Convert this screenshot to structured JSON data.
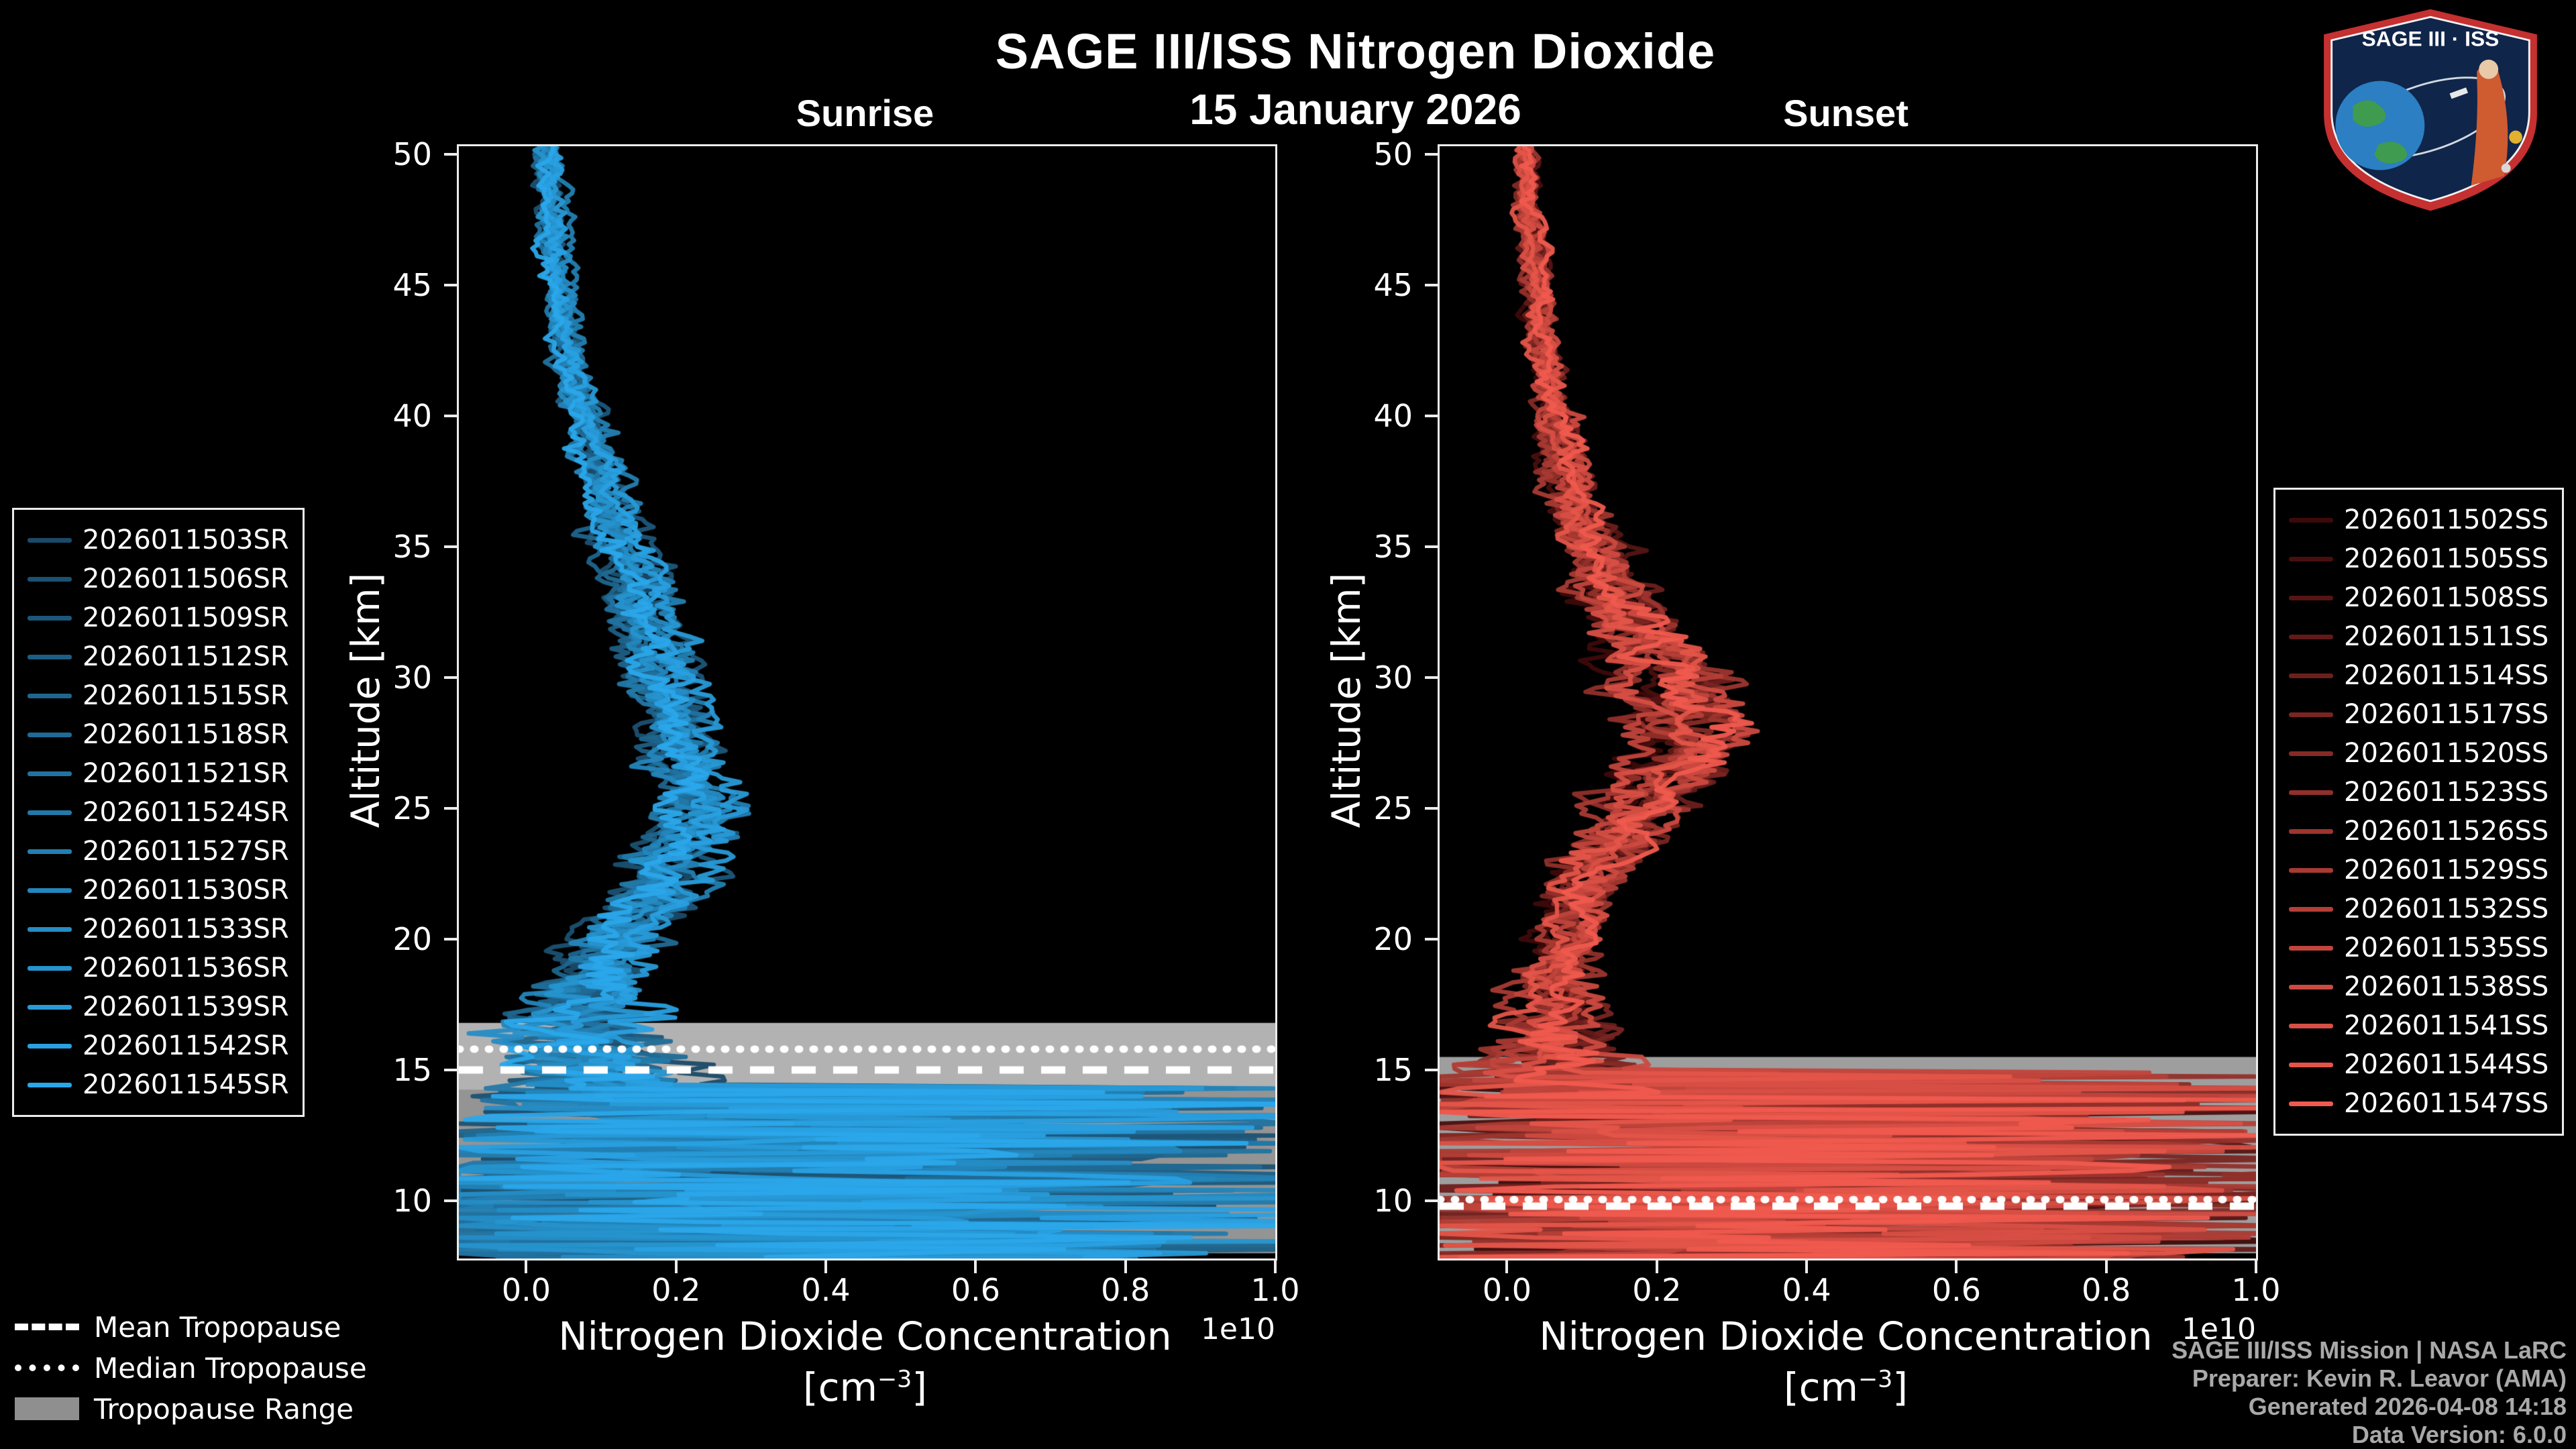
{
  "header": {
    "title": "SAGE III/ISS Nitrogen Dioxide",
    "date": "15 January 2026"
  },
  "logo": {
    "title": "SAGE III · ISS"
  },
  "tropopause_legend": {
    "mean_label": "Mean Tropopause",
    "median_label": "Median Tropopause",
    "range_label": "Tropopause Range"
  },
  "credits": {
    "line1": "SAGE III/ISS Mission | NASA LaRC",
    "line2": "Preparer: Kevin R. Leavor (AMA)",
    "line3": "Generated 2026-04-08 14:18",
    "line4": "Data Version: 6.0.0"
  },
  "chart_data": [
    {
      "type": "line",
      "panel": "sunrise",
      "title": "Sunrise",
      "xlabel": "Nitrogen Dioxide Concentration",
      "xlabel_units_prefix": "[cm",
      "xlabel_units_exponent": "−3",
      "xlabel_units_suffix": "]",
      "x_offset_text": "1e10",
      "ylabel": "Altitude [km]",
      "xlim": [
        -0.09,
        1.0
      ],
      "ylim": [
        7.8,
        50.3
      ],
      "xticks": [
        0.0,
        0.2,
        0.4,
        0.6,
        0.8,
        1.0
      ],
      "xtick_labels": [
        "0.0",
        "0.2",
        "0.4",
        "0.6",
        "0.8",
        "1.0"
      ],
      "yticks": [
        10,
        15,
        20,
        25,
        30,
        35,
        40,
        45,
        50
      ],
      "ytick_labels": [
        "10",
        "15",
        "20",
        "25",
        "30",
        "35",
        "40",
        "45",
        "50"
      ],
      "series": [
        {
          "name": "2026011503SR",
          "color": "#1A4A68"
        },
        {
          "name": "2026011506SR",
          "color": "#1B5171"
        },
        {
          "name": "2026011509SR",
          "color": "#1C577B"
        },
        {
          "name": "2026011512SR",
          "color": "#1D5E84"
        },
        {
          "name": "2026011515SR",
          "color": "#1F658D"
        },
        {
          "name": "2026011518SR",
          "color": "#206B96"
        },
        {
          "name": "2026011521SR",
          "color": "#2172A0"
        },
        {
          "name": "2026011524SR",
          "color": "#2279A9"
        },
        {
          "name": "2026011527SR",
          "color": "#237FB2"
        },
        {
          "name": "2026011530SR",
          "color": "#2486BC"
        },
        {
          "name": "2026011533SR",
          "color": "#258CC5"
        },
        {
          "name": "2026011536SR",
          "color": "#2693CE"
        },
        {
          "name": "2026011539SR",
          "color": "#289AD7"
        },
        {
          "name": "2026011542SR",
          "color": "#29A0E1"
        },
        {
          "name": "2026011545SR",
          "color": "#2AA7EA"
        }
      ],
      "mean_profile": {
        "altitude_km": [
          50,
          48,
          46,
          44,
          42,
          40,
          38,
          36,
          34,
          32,
          30,
          28,
          26,
          25,
          24,
          23,
          22,
          21,
          20,
          19,
          18,
          17,
          16,
          15,
          14.5,
          14,
          13,
          12,
          11,
          10,
          9,
          8
        ],
        "concentration_1e10": [
          0.03,
          0.035,
          0.04,
          0.05,
          0.06,
          0.08,
          0.1,
          0.12,
          0.15,
          0.17,
          0.19,
          0.21,
          0.235,
          0.245,
          0.23,
          0.205,
          0.18,
          0.15,
          0.125,
          0.105,
          0.09,
          0.08,
          0.085,
          0.095,
          0.105,
          0.13,
          0.18,
          0.24,
          0.28,
          0.3,
          0.26,
          0.22
        ],
        "noise_amplitude_1e10": [
          0.012,
          0.012,
          0.013,
          0.014,
          0.015,
          0.017,
          0.019,
          0.021,
          0.024,
          0.027,
          0.03,
          0.032,
          0.034,
          0.035,
          0.035,
          0.036,
          0.038,
          0.04,
          0.045,
          0.05,
          0.06,
          0.075,
          0.095,
          0.115,
          0.14,
          0.2,
          0.38,
          0.5,
          0.55,
          0.52,
          0.48,
          0.42
        ]
      },
      "chaos_top_km": 14.6,
      "tropopause": {
        "mean_km": 15.0,
        "median_km": 15.8,
        "range_km": [
          8.0,
          16.8
        ],
        "band_color": "#949494",
        "band_highlight_km": [
          14.25,
          16.8
        ],
        "band_highlight_color": "#b2b2b2"
      }
    },
    {
      "type": "line",
      "panel": "sunset",
      "title": "Sunset",
      "xlabel": "Nitrogen Dioxide Concentration",
      "xlabel_units_prefix": "[cm",
      "xlabel_units_exponent": "−3",
      "xlabel_units_suffix": "]",
      "x_offset_text": "1e10",
      "ylabel": "Altitude [km]",
      "xlim": [
        -0.09,
        1.0
      ],
      "ylim": [
        7.8,
        50.3
      ],
      "xticks": [
        0.0,
        0.2,
        0.4,
        0.6,
        0.8,
        1.0
      ],
      "xtick_labels": [
        "0.0",
        "0.2",
        "0.4",
        "0.6",
        "0.8",
        "1.0"
      ],
      "yticks": [
        10,
        15,
        20,
        25,
        30,
        35,
        40,
        45,
        50
      ],
      "ytick_labels": [
        "10",
        "15",
        "20",
        "25",
        "30",
        "35",
        "40",
        "45",
        "50"
      ],
      "series": [
        {
          "name": "2026011502SS",
          "color": "#3D0A0A"
        },
        {
          "name": "2026011505SS",
          "color": "#490F0F"
        },
        {
          "name": "2026011508SS",
          "color": "#551513"
        },
        {
          "name": "2026011511SS",
          "color": "#611A18"
        },
        {
          "name": "2026011514SS",
          "color": "#6D1F1C"
        },
        {
          "name": "2026011517SS",
          "color": "#792521"
        },
        {
          "name": "2026011520SS",
          "color": "#852A25"
        },
        {
          "name": "2026011523SS",
          "color": "#912F2A"
        },
        {
          "name": "2026011526SS",
          "color": "#9C352E"
        },
        {
          "name": "2026011529SS",
          "color": "#A83A33"
        },
        {
          "name": "2026011532SS",
          "color": "#B43F37"
        },
        {
          "name": "2026011535SS",
          "color": "#C0453C"
        },
        {
          "name": "2026011538SS",
          "color": "#CC4A40"
        },
        {
          "name": "2026011541SS",
          "color": "#D84F45"
        },
        {
          "name": "2026011544SS",
          "color": "#E45549"
        },
        {
          "name": "2026011547SS",
          "color": "#F05A4E"
        }
      ],
      "mean_profile": {
        "altitude_km": [
          50,
          48,
          46,
          44,
          42,
          40,
          38,
          36,
          34,
          32,
          31,
          30,
          29,
          28,
          27,
          26,
          25,
          24,
          23,
          22,
          21,
          20,
          19,
          18,
          17,
          16,
          15.5,
          15,
          14,
          13,
          12,
          11,
          10,
          9,
          8
        ],
        "concentration_1e10": [
          0.025,
          0.03,
          0.035,
          0.04,
          0.05,
          0.065,
          0.08,
          0.1,
          0.13,
          0.165,
          0.185,
          0.21,
          0.228,
          0.238,
          0.23,
          0.215,
          0.185,
          0.155,
          0.125,
          0.105,
          0.092,
          0.082,
          0.072,
          0.065,
          0.06,
          0.06,
          0.065,
          0.08,
          0.14,
          0.21,
          0.27,
          0.3,
          0.3,
          0.28,
          0.25
        ],
        "noise_amplitude_1e10": [
          0.012,
          0.012,
          0.013,
          0.014,
          0.016,
          0.018,
          0.021,
          0.026,
          0.032,
          0.038,
          0.04,
          0.042,
          0.042,
          0.042,
          0.042,
          0.042,
          0.042,
          0.04,
          0.038,
          0.035,
          0.032,
          0.03,
          0.032,
          0.036,
          0.045,
          0.06,
          0.08,
          0.11,
          0.26,
          0.42,
          0.54,
          0.56,
          0.53,
          0.49,
          0.43
        ]
      },
      "chaos_top_km": 15.2,
      "tropopause": {
        "mean_km": 9.8,
        "median_km": 10.05,
        "range_km": [
          8.0,
          15.5
        ],
        "band_color": "#9e9e9e",
        "band_highlight_km": null,
        "band_highlight_color": null
      }
    }
  ]
}
